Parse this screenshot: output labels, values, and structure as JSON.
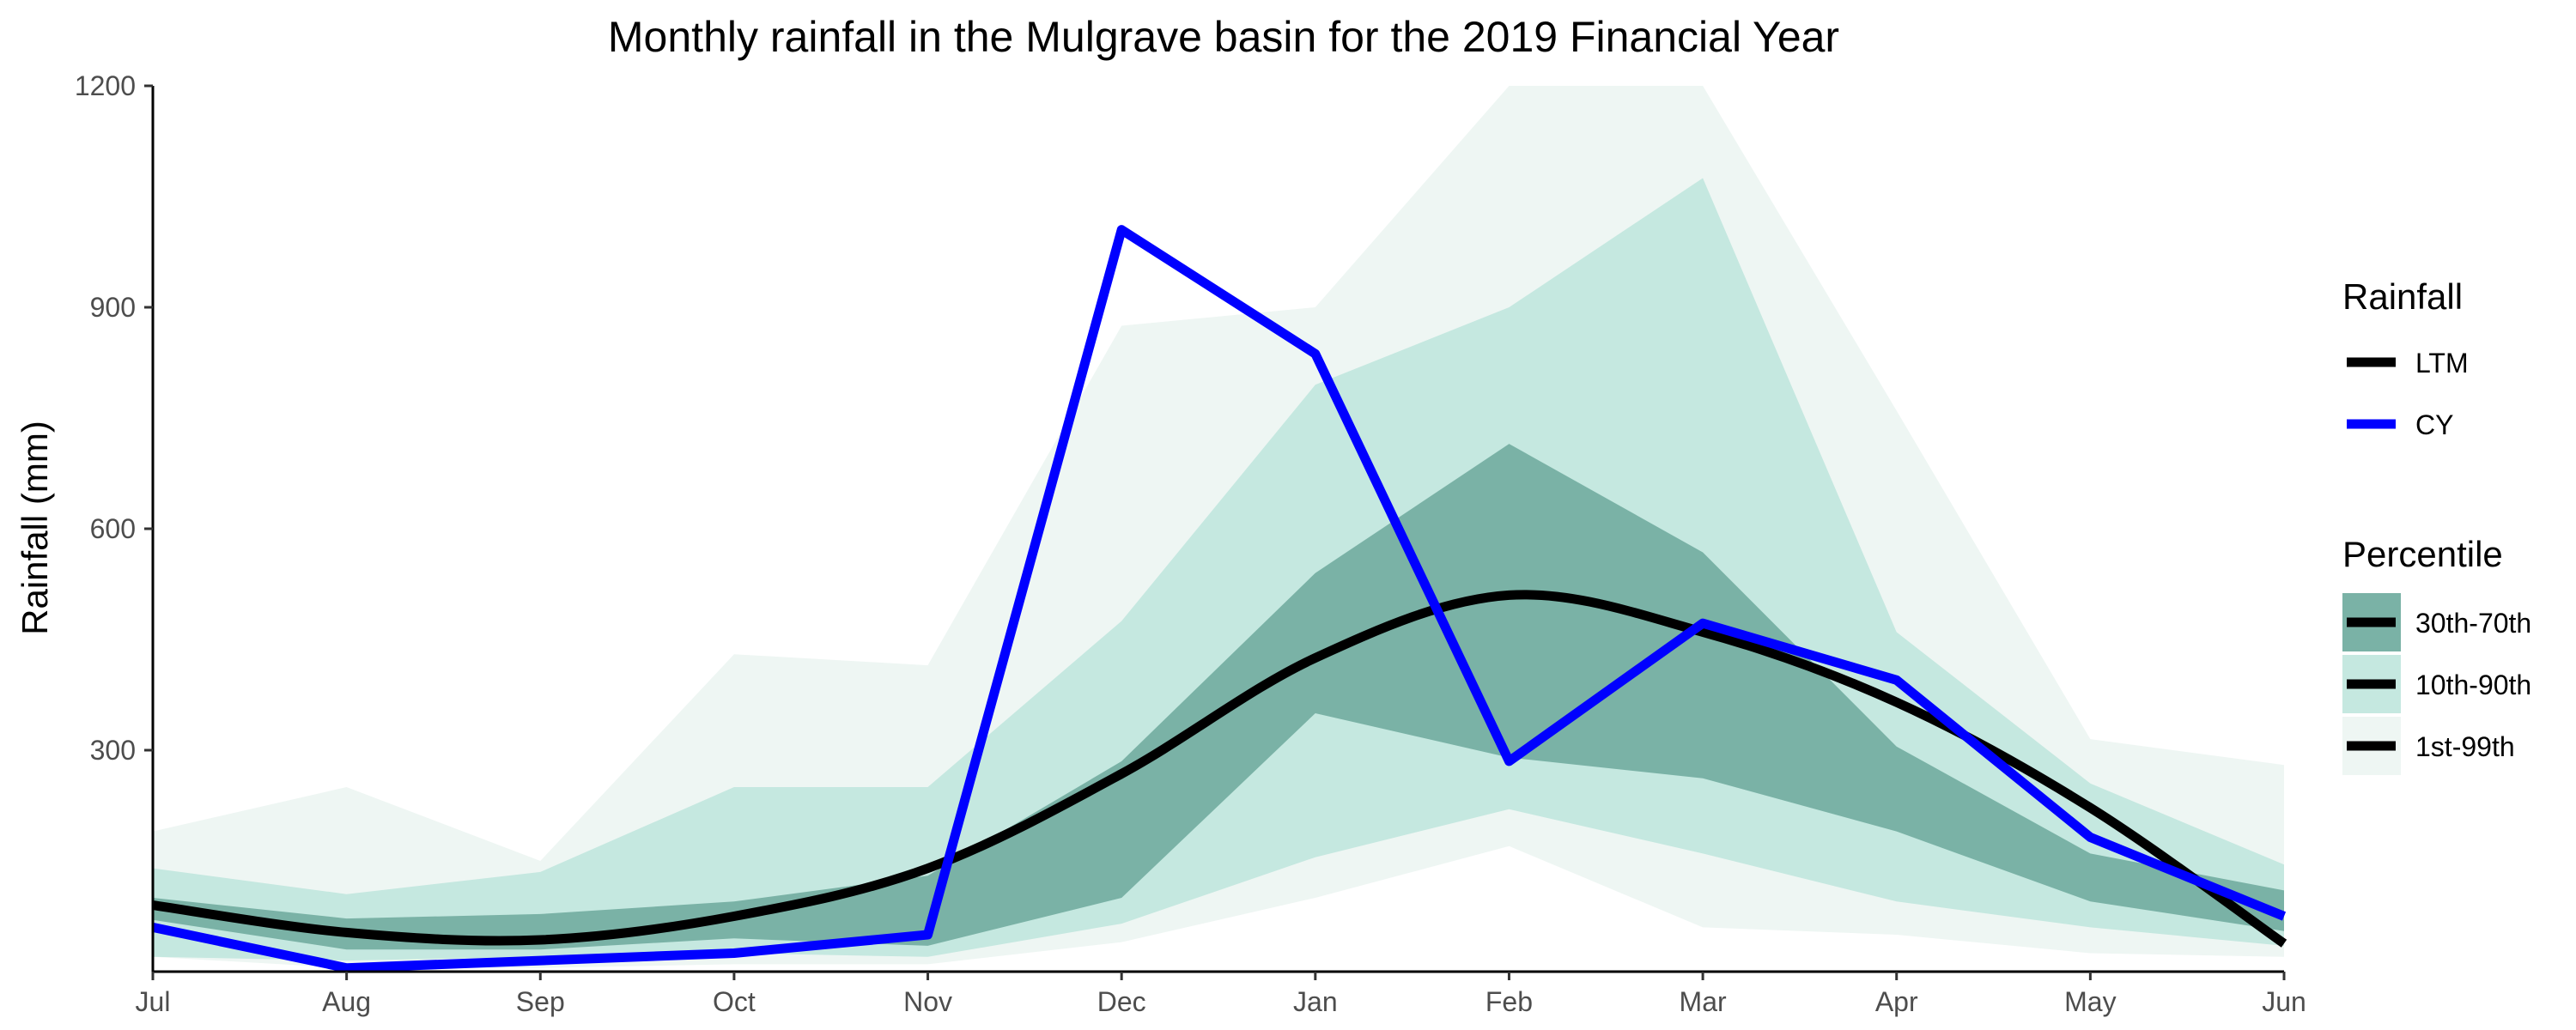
{
  "chart_data": {
    "type": "area",
    "title": "Monthly rainfall in the Mulgrave basin for the 2019 Financial Year",
    "xlabel": "",
    "ylabel": "Rainfall (mm)",
    "categories": [
      "Jul",
      "Aug",
      "Sep",
      "Oct",
      "Nov",
      "Dec",
      "Jan",
      "Feb",
      "Mar",
      "Apr",
      "May",
      "Jun"
    ],
    "ylim": [
      0,
      1200
    ],
    "yticks": [
      300,
      600,
      900,
      1200
    ],
    "grid": false,
    "legend_position": "right",
    "bands": [
      {
        "name": "1st-99th",
        "color": "#eef6f3",
        "lower": [
          20,
          5,
          5,
          10,
          10,
          40,
          100,
          170,
          60,
          50,
          25,
          20
        ],
        "upper": [
          190,
          250,
          150,
          430,
          415,
          875,
          900,
          1200,
          1200,
          760,
          315,
          280
        ]
      },
      {
        "name": "10th-90th",
        "color": "#c5e8e0",
        "lower": [
          20,
          15,
          20,
          25,
          20,
          65,
          155,
          220,
          160,
          95,
          60,
          35
        ],
        "upper": [
          140,
          105,
          135,
          250,
          250,
          475,
          795,
          900,
          1075,
          460,
          255,
          145
        ]
      },
      {
        "name": "30th-70th",
        "color": "#7ab2a6",
        "lower": [
          70,
          30,
          30,
          45,
          35,
          100,
          350,
          290,
          262,
          190,
          95,
          55
        ],
        "upper": [
          100,
          72,
          78,
          95,
          130,
          285,
          540,
          715,
          568,
          305,
          160,
          110
        ]
      }
    ],
    "series": [
      {
        "name": "LTM",
        "color": "#000000",
        "values": [
          90,
          53,
          43,
          75,
          140,
          268,
          425,
          510,
          460,
          365,
          222,
          38
        ]
      },
      {
        "name": "CY",
        "color": "#0000ff",
        "values": [
          60,
          5,
          15,
          25,
          50,
          1005,
          837,
          285,
          472,
          395,
          182,
          75
        ]
      }
    ],
    "legend": {
      "rainfall_title": "Rainfall",
      "rainfall_items": [
        "LTM",
        "CY"
      ],
      "percentile_title": "Percentile",
      "percentile_items": [
        "30th-70th",
        "10th-90th",
        "1st-99th"
      ]
    }
  }
}
